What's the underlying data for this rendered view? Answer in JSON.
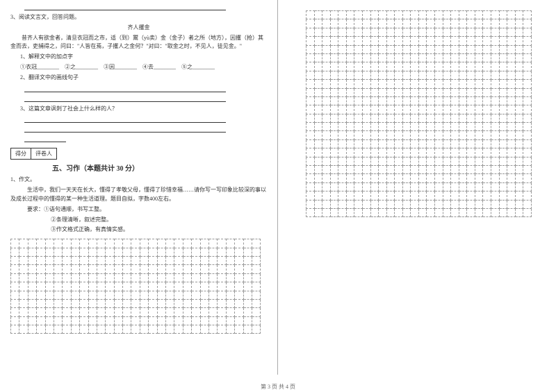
{
  "q3": {
    "prompt": "3、阅读文言文，回答问题。",
    "title": "齐人攫金",
    "passage": "昔齐人有欲金者，清旦衣冠而之市，适（到）鬻（yù卖）金（金子）者之所（地方），因攫（抢）其金而去，吏捕得之，问曰：\"人皆在焉，子攫人之金何？\"对曰：\"取金之时，不见人，徒见金。\"",
    "sub1_title": "1、解释文中的加点字",
    "sub1_items": "①衣冠________　②之________　③因________　④去________　⑤之________",
    "sub2_title": "2、翻译文中的画线句子",
    "sub3_title": "3、这篇文章讽刺了社会上什么样的人？"
  },
  "scorebox": {
    "score": "得分",
    "grader": "评卷人"
  },
  "section5": {
    "title": "五、习作（本题共计 30 分）",
    "q1_label": "1、作文。",
    "q1_body": "生活中，我们一天天在长大，懂得了孝敬父母，懂得了珍惜幸福……请你写一写印象比较深的事以及成长过程中的懂得的某一种生活道理。题目自拟，字数400左右。",
    "req_label": "要求：①语句通顺，书写工整。",
    "req2": "②条理清晰，叙述完整。",
    "req3": "③作文格式正确，有真情实感。"
  },
  "footer": "第 3 页 共 4 页",
  "grid": {
    "left_cols": 29,
    "left_rows": 11,
    "right_cols": 28,
    "right_rows": 24,
    "cell_size": 12.4,
    "border_color": "#999999"
  }
}
